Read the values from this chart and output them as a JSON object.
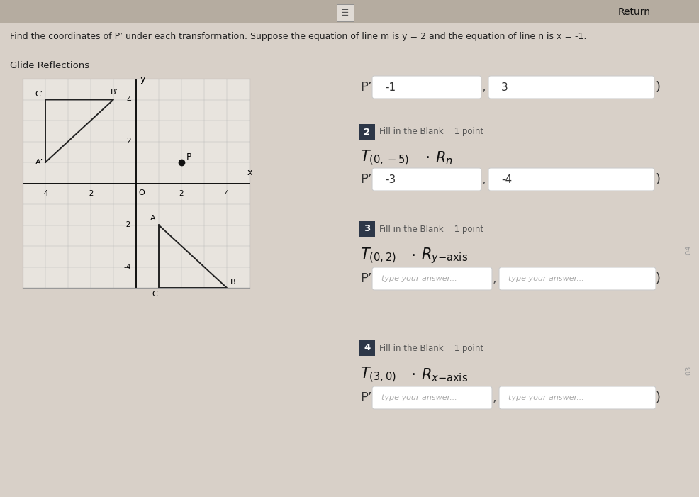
{
  "bg_color": "#d8d0c8",
  "title_text": "Find the coordinates of P’ under each transformation. Suppose the equation of line m is y = 2 and the equation of line n is x = -1.",
  "title_fontsize": 9.5,
  "return_btn": "Return",
  "section_label": "Glide Reflections",
  "graph": {
    "xlim": [
      -5,
      5
    ],
    "ylim": [
      -5,
      5
    ],
    "grid_color": "#bbbbbb",
    "axis_color": "#000000",
    "bg_color": "#e8e4de",
    "triangle_ABC": {
      "A": [
        1,
        -2
      ],
      "B": [
        4,
        -5
      ],
      "C": [
        1,
        -5
      ],
      "color": "#222222",
      "label_A": "A",
      "label_B": "B",
      "label_C": "C"
    },
    "triangle_primed": {
      "A_prime": [
        -4,
        1
      ],
      "B_prime": [
        -1,
        4
      ],
      "C_prime": [
        -4,
        4
      ],
      "color": "#222222",
      "label_A": "A’",
      "label_B": "B’",
      "label_C": "C’"
    },
    "point_P": [
      2,
      1
    ],
    "point_P_label": "P",
    "point_color": "#111111"
  },
  "q0": {
    "prefix": "P’(",
    "box1_value": "-1",
    "box2_value": "3",
    "suffix": ")"
  },
  "q2": {
    "badge": "2",
    "fill_label": "Fill in the Blank    1 point",
    "formula_left": "T_{(0,-5)}",
    "formula_right": "R_n",
    "prefix": "P’(",
    "box1_value": "-3",
    "box2_value": "-4",
    "suffix": ")"
  },
  "q3": {
    "badge": "3",
    "fill_label": "Fill in the Blank    1 point",
    "formula_left": "T_{(0,2)}",
    "formula_right": "R_{y\\text{-axis}}",
    "prefix": "P’(",
    "box1_placeholder": "type your answer...",
    "box2_placeholder": "type your answer...",
    "suffix": ")"
  },
  "q4": {
    "badge": "4",
    "fill_label": "Fill in the Blank    1 point",
    "formula_left": "T_{(3,0)}",
    "formula_right": "R_{x\\text{-axis}}",
    "prefix": "P’(",
    "box1_placeholder": "type your answer...",
    "box2_placeholder": "type your answer...",
    "suffix": ")"
  },
  "box_color": "#ffffff",
  "box_border": "#cccccc",
  "badge_color": "#2d3748",
  "badge_text_color": "#ffffff"
}
